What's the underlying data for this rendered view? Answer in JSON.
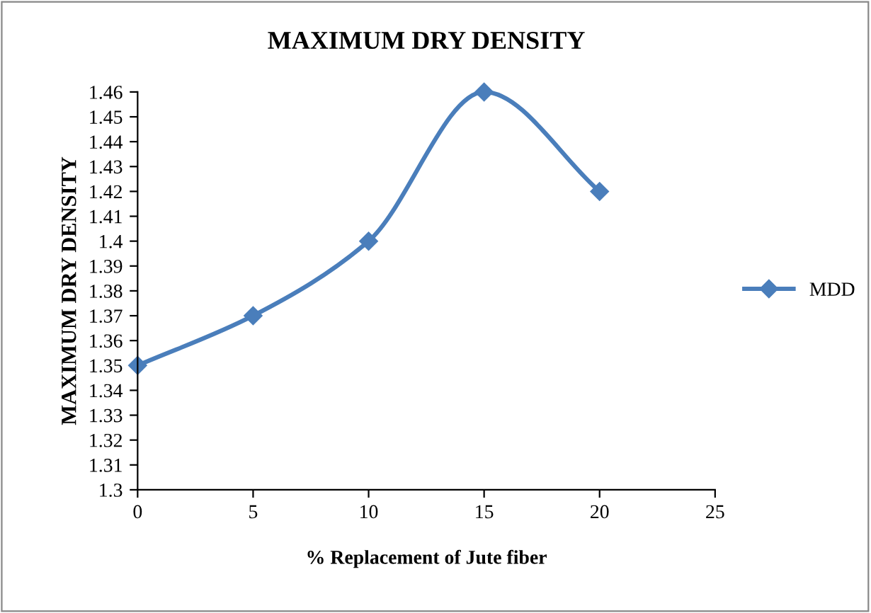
{
  "chart_data": {
    "type": "line",
    "title": "MAXIMUM DRY DENSITY",
    "xlabel": "% Replacement of Jute fiber",
    "ylabel": "MAXIMUM DRY DENSITY",
    "x": [
      0,
      5,
      10,
      15,
      20
    ],
    "series": [
      {
        "name": "MDD",
        "color": "#4a7ebb",
        "values": [
          1.35,
          1.37,
          1.4,
          1.46,
          1.42
        ]
      }
    ],
    "xlim": [
      0,
      25
    ],
    "xticks": [
      0,
      5,
      10,
      15,
      20,
      25
    ],
    "ylim": [
      1.3,
      1.46
    ],
    "yticks": [
      1.3,
      1.31,
      1.32,
      1.33,
      1.34,
      1.35,
      1.36,
      1.37,
      1.38,
      1.39,
      1.4,
      1.41,
      1.42,
      1.43,
      1.44,
      1.45,
      1.46
    ],
    "grid": false,
    "legend": "right",
    "marker": "diamond",
    "line_style": "solid"
  }
}
